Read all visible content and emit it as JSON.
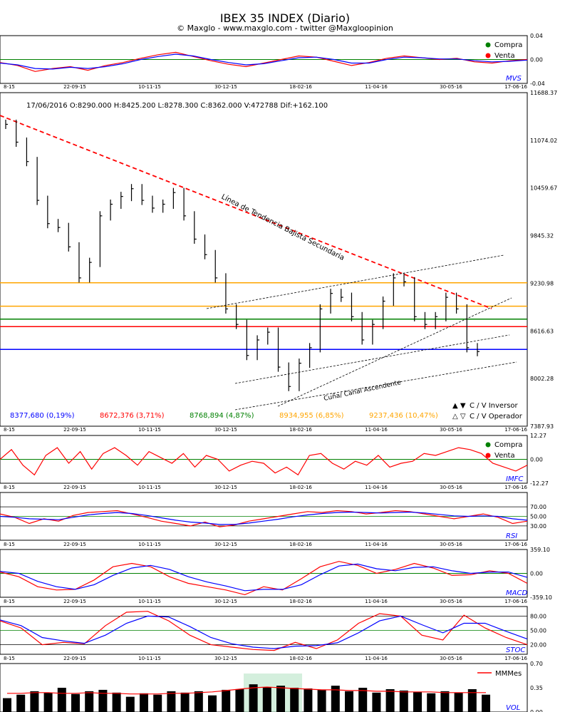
{
  "title": "IBEX 35 INDEX (Diario)",
  "subtitle": "© Maxglo - www.maxglo.com - twitter @Maxgloopinion",
  "x_ticks": [
    "8-15",
    "22-09-15",
    "10-11-15",
    "30-12-15",
    "18-02-16",
    "11-04-16",
    "30-05-16",
    "17-06-16"
  ],
  "colors": {
    "red": "#ff0000",
    "blue": "#0000ff",
    "green": "#008000",
    "orange": "#ffa500",
    "buy": "#008000",
    "sell": "#ff0000"
  },
  "chart_data": [
    {
      "type": "line",
      "name": "MVS",
      "panel_label": "MVS",
      "ylim": [
        -0.04,
        0.04
      ],
      "y_ticks": [
        "0.04",
        "0.00",
        "-0.04"
      ],
      "legend": [
        "Compra",
        "Venta"
      ],
      "series": [
        {
          "color": "red",
          "values": [
            -0.005,
            -0.01,
            -0.02,
            -0.015,
            -0.012,
            -0.018,
            -0.01,
            -0.005,
            0.002,
            0.008,
            0.012,
            0.005,
            -0.002,
            -0.008,
            -0.012,
            -0.006,
            0.0,
            0.006,
            0.004,
            -0.003,
            -0.01,
            -0.005,
            0.002,
            0.006,
            0.003,
            0.0,
            0.002,
            -0.004,
            -0.006,
            -0.002,
            0.0
          ]
        },
        {
          "color": "blue",
          "values": [
            -0.006,
            -0.009,
            -0.015,
            -0.016,
            -0.013,
            -0.015,
            -0.012,
            -0.007,
            0.0,
            0.005,
            0.009,
            0.006,
            0.0,
            -0.005,
            -0.009,
            -0.007,
            -0.002,
            0.003,
            0.004,
            0.0,
            -0.006,
            -0.006,
            0.0,
            0.004,
            0.003,
            0.001,
            0.001,
            -0.002,
            -0.004,
            -0.003,
            -0.001
          ]
        }
      ]
    },
    {
      "type": "candlestick",
      "name": "IBEX 35",
      "info_line": "17/06/2016  O:8290.000  H:8425.200  L:8278.300  C:8362.000  V:472788  Dif:+162.100",
      "ylim": [
        7387.93,
        11688.37
      ],
      "y_ticks": [
        "11688.37",
        "11074.02",
        "10459.67",
        "9845.32",
        "9230.98",
        "8616.63",
        "8002.28",
        "7387.93"
      ],
      "close": [
        11280,
        11050,
        10800,
        10300,
        10000,
        9950,
        9700,
        9300,
        9500,
        10100,
        10250,
        10350,
        10450,
        10300,
        10200,
        10250,
        10400,
        10100,
        9800,
        9600,
        9300,
        8900,
        8700,
        8300,
        8500,
        8600,
        8150,
        7900,
        8200,
        8400,
        8900,
        9100,
        9050,
        8800,
        8500,
        8700,
        9000,
        9300,
        9250,
        8800,
        8700,
        8800,
        9050,
        8900,
        8400,
        8350
      ],
      "hlines": [
        {
          "color": "blue",
          "value": 8377.68,
          "label": "8377,680 (0,19%)"
        },
        {
          "color": "red",
          "value": 8672.376,
          "label": "8672,376 (3,71%)"
        },
        {
          "color": "green",
          "value": 8768.894,
          "label": "8768,894 (4,87%)"
        },
        {
          "color": "orange",
          "value": 8934.955,
          "label": "8934,955 (6,85%)"
        },
        {
          "color": "orange",
          "value": 9237.436,
          "label": "9237,436 (10,47%)"
        }
      ],
      "annotations": [
        "Línea de Tendencia Bajista Secundaria",
        "Cuña/ Canal  Ascendente"
      ],
      "legend": [
        "C / V Inversor",
        "C / V Operador"
      ]
    },
    {
      "type": "line",
      "name": "IMFC",
      "panel_label": "IMFC",
      "ylim": [
        -12.27,
        12.27
      ],
      "y_ticks": [
        "12.27",
        "0.00",
        "-12.27"
      ],
      "legend": [
        "Compra",
        "Venta"
      ],
      "series": [
        {
          "color": "red",
          "values": [
            0,
            5,
            -3,
            -8,
            2,
            6,
            -2,
            4,
            -5,
            3,
            6,
            2,
            -3,
            4,
            1,
            -2,
            3,
            -4,
            2,
            0,
            -6,
            -3,
            -1,
            -2,
            -7,
            -4,
            -8,
            2,
            3,
            -2,
            -5,
            -1,
            -3,
            2,
            -4,
            -2,
            -1,
            3,
            2,
            4,
            6,
            5,
            3,
            -2,
            -4,
            -6,
            -3
          ]
        }
      ]
    },
    {
      "type": "line",
      "name": "RSI",
      "panel_label": "RSI",
      "ylim": [
        0,
        100
      ],
      "y_ticks": [
        "70.00",
        "50.00",
        "30.00"
      ],
      "series": [
        {
          "color": "red",
          "values": [
            55,
            48,
            35,
            45,
            40,
            52,
            58,
            60,
            62,
            55,
            48,
            40,
            35,
            30,
            38,
            28,
            32,
            40,
            45,
            50,
            55,
            60,
            58,
            62,
            60,
            55,
            58,
            62,
            60,
            55,
            50,
            45,
            50,
            55,
            48,
            35,
            40
          ]
        },
        {
          "color": "blue",
          "values": [
            50,
            48,
            45,
            44,
            43,
            48,
            53,
            56,
            58,
            56,
            52,
            47,
            42,
            38,
            36,
            33,
            33,
            36,
            40,
            44,
            49,
            53,
            56,
            58,
            59,
            58,
            57,
            58,
            59,
            57,
            54,
            51,
            50,
            51,
            50,
            45,
            42
          ]
        }
      ]
    },
    {
      "type": "line",
      "name": "MACD",
      "panel_label": "MACD",
      "ylim": [
        -359.1,
        359.1
      ],
      "y_ticks": [
        "359.10",
        "0.00",
        "-359.10"
      ],
      "series": [
        {
          "color": "red",
          "values": [
            20,
            -50,
            -200,
            -250,
            -240,
            -100,
            100,
            150,
            100,
            -50,
            -150,
            -200,
            -250,
            -320,
            -200,
            -250,
            -80,
            100,
            180,
            120,
            0,
            60,
            150,
            80,
            -30,
            -20,
            40,
            0,
            -150
          ]
        },
        {
          "color": "blue",
          "values": [
            30,
            0,
            -120,
            -200,
            -240,
            -170,
            -30,
            80,
            120,
            60,
            -50,
            -130,
            -190,
            -260,
            -240,
            -240,
            -170,
            -20,
            110,
            140,
            70,
            40,
            90,
            100,
            40,
            0,
            20,
            20,
            -60
          ]
        }
      ]
    },
    {
      "type": "line",
      "name": "STOC",
      "panel_label": "STOC",
      "ylim": [
        0,
        100
      ],
      "y_ticks": [
        "80.00",
        "50.00",
        "20.00"
      ],
      "series": [
        {
          "color": "red",
          "values": [
            70,
            55,
            20,
            25,
            22,
            60,
            88,
            90,
            70,
            40,
            20,
            15,
            10,
            8,
            25,
            12,
            30,
            65,
            85,
            80,
            40,
            30,
            82,
            55,
            35,
            20
          ]
        },
        {
          "color": "blue",
          "values": [
            72,
            60,
            35,
            28,
            23,
            40,
            65,
            80,
            78,
            58,
            35,
            22,
            15,
            12,
            17,
            18,
            24,
            45,
            70,
            80,
            62,
            45,
            65,
            65,
            48,
            32
          ]
        }
      ]
    },
    {
      "type": "bar",
      "name": "VOL",
      "panel_label": "VOL",
      "ylim": [
        0,
        0.7
      ],
      "y_ticks": [
        "0.70",
        "0.35",
        "0.00"
      ],
      "legend": [
        "MMMes"
      ],
      "values": [
        0.2,
        0.25,
        0.3,
        0.28,
        0.35,
        0.26,
        0.3,
        0.32,
        0.28,
        0.22,
        0.27,
        0.25,
        0.3,
        0.28,
        0.3,
        0.24,
        0.32,
        0.33,
        0.4,
        0.36,
        0.38,
        0.35,
        0.34,
        0.32,
        0.38,
        0.3,
        0.35,
        0.28,
        0.33,
        0.31,
        0.29,
        0.27,
        0.3,
        0.28,
        0.33,
        0.25
      ],
      "mm": [
        0.27,
        0.27,
        0.28,
        0.28,
        0.27,
        0.27,
        0.28,
        0.27,
        0.27,
        0.26,
        0.26,
        0.26,
        0.27,
        0.27,
        0.28,
        0.29,
        0.31,
        0.33,
        0.35,
        0.36,
        0.35,
        0.34,
        0.33,
        0.32,
        0.32,
        0.31,
        0.31,
        0.3,
        0.3,
        0.29,
        0.29,
        0.29,
        0.28,
        0.28,
        0.28,
        0.28
      ]
    }
  ]
}
